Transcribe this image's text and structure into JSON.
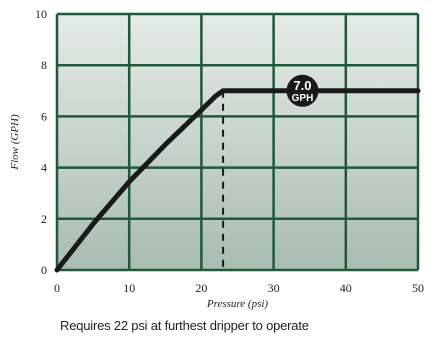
{
  "chart_data": {
    "type": "line",
    "xlabel": "Pressure (psi)",
    "ylabel": "Flow (GPH)",
    "xlim": [
      0,
      50
    ],
    "ylim": [
      0,
      10
    ],
    "x_ticks": [
      0,
      10,
      20,
      30,
      40,
      50
    ],
    "y_ticks": [
      0,
      2,
      4,
      6,
      8,
      10
    ],
    "grid": true,
    "series": [
      {
        "x": [
          0,
          5,
          10,
          15,
          20,
          22,
          23,
          30,
          40,
          50
        ],
        "y": [
          0,
          1.8,
          3.45,
          4.9,
          6.25,
          6.8,
          7.0,
          7.0,
          7.0,
          7.0
        ]
      }
    ],
    "reference_line": {
      "x": 23,
      "y": 7.0,
      "style": "dashed"
    },
    "annotation": {
      "value": "7.0",
      "unit": "GPH",
      "x": 34,
      "y": 7.0
    },
    "colors": {
      "line": "#1a1a1a",
      "grid": "#1e5a3a",
      "bg_top": "#e6ebe8",
      "bg_bottom": "#a8bcb2"
    }
  },
  "caption": "Requires 22 psi at furthest dripper to operate"
}
